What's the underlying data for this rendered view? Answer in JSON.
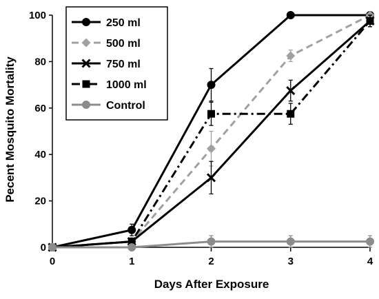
{
  "chart_data": {
    "type": "line",
    "title": "",
    "xlabel": "Days After Exposure",
    "ylabel": "Pecent Mosquito Mortality",
    "x": [
      0,
      1,
      2,
      3,
      4
    ],
    "xlim": [
      0,
      4
    ],
    "ylim": [
      0,
      100
    ],
    "xticks": [
      "0",
      "1",
      "2",
      "3",
      "4"
    ],
    "yticks": [
      "0",
      "20",
      "40",
      "60",
      "80",
      "100"
    ],
    "grid": false,
    "legend_position": "top-left",
    "series": [
      {
        "name": "250 ml",
        "values": [
          0,
          7.5,
          70,
          100,
          100
        ],
        "errors": [
          0,
          2.5,
          7,
          0,
          0
        ],
        "color": "#000000",
        "line_style": "solid",
        "marker": "circle"
      },
      {
        "name": "500 ml",
        "values": [
          0,
          2.5,
          42.5,
          82.5,
          100
        ],
        "errors": [
          0,
          1.5,
          7.5,
          2.5,
          0
        ],
        "color": "#a0a0a0",
        "line_style": "dashed",
        "marker": "diamond"
      },
      {
        "name": "750 ml",
        "values": [
          0,
          2.5,
          30,
          67.5,
          97.5
        ],
        "errors": [
          0,
          1.5,
          7,
          4.5,
          2.5
        ],
        "color": "#000000",
        "line_style": "solid",
        "marker": "x"
      },
      {
        "name": "1000 ml",
        "values": [
          0,
          2.5,
          57.5,
          57.5,
          97.5
        ],
        "errors": [
          0,
          1.5,
          5,
          4.5,
          2.5
        ],
        "color": "#000000",
        "line_style": "dashdot",
        "marker": "square"
      },
      {
        "name": "Control",
        "values": [
          0,
          0,
          2.5,
          2.5,
          2.5
        ],
        "errors": [
          0,
          0,
          2.5,
          2.5,
          2.5
        ],
        "color": "#8c8c8c",
        "line_style": "solid",
        "marker": "circle"
      }
    ]
  }
}
